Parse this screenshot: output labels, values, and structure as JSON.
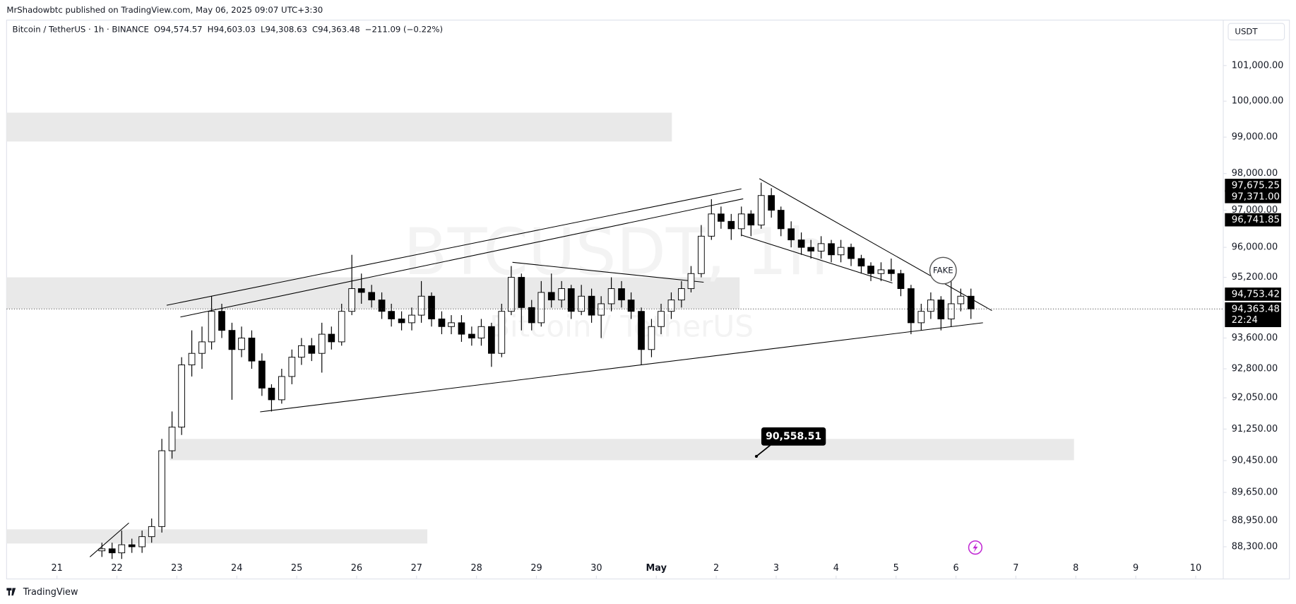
{
  "page": {
    "published": "MrShadowbtc published on TradingView.com, May 06, 2025 09:07 UTC+3:30",
    "brand": "TradingView",
    "currency_button": "USDT"
  },
  "chart_data": {
    "type": "candlestick",
    "symbol": "Bitcoin / TetherUS · 1h · BINANCE",
    "ohlc_header": [
      "O94,574.57",
      "H94,603.03",
      "L94,308.63",
      "C94,363.48",
      "−211.09 (−0.22%)"
    ],
    "watermark": [
      "BTCUSDT, 1h",
      "Bitcoin / TetherUS"
    ],
    "log_scale": true,
    "grid": false,
    "up_color": "#ffffff",
    "down_color": "#000000",
    "wick_color": "#000000",
    "zone_color": "#e9e9e9",
    "line_color": "#000000",
    "xlim": [
      -0.84,
      19.46
    ],
    "xticks": [
      {
        "value": 0,
        "label": "21"
      },
      {
        "value": 1,
        "label": "22"
      },
      {
        "value": 2,
        "label": "23"
      },
      {
        "value": 3,
        "label": "24"
      },
      {
        "value": 4,
        "label": "25"
      },
      {
        "value": 5,
        "label": "26"
      },
      {
        "value": 6,
        "label": "27"
      },
      {
        "value": 7,
        "label": "28"
      },
      {
        "value": 8,
        "label": "29"
      },
      {
        "value": 9,
        "label": "30"
      },
      {
        "value": 10,
        "label": "May"
      },
      {
        "value": 11,
        "label": "2"
      },
      {
        "value": 12,
        "label": "3"
      },
      {
        "value": 13,
        "label": "4"
      },
      {
        "value": 14,
        "label": "5"
      },
      {
        "value": 15,
        "label": "6"
      },
      {
        "value": 16,
        "label": "7"
      },
      {
        "value": 17,
        "label": "8"
      },
      {
        "value": 18,
        "label": "9"
      },
      {
        "value": 19,
        "label": "10"
      }
    ],
    "ylim": [
      87510,
      102290
    ],
    "yticks": [
      {
        "value": 101000,
        "label": "101,000.00"
      },
      {
        "value": 100000,
        "label": "100,000.00"
      },
      {
        "value": 99000,
        "label": "99,000.00"
      },
      {
        "value": 98000,
        "label": "98,000.00"
      },
      {
        "value": 97000,
        "label": "97,000.00"
      },
      {
        "value": 96000,
        "label": "96,000.00"
      },
      {
        "value": 95200,
        "label": "95,200.00"
      },
      {
        "value": 93600,
        "label": "93,600.00"
      },
      {
        "value": 92800,
        "label": "92,800.00"
      },
      {
        "value": 92050,
        "label": "92,050.00"
      },
      {
        "value": 91250,
        "label": "91,250.00"
      },
      {
        "value": 90450,
        "label": "90,450.00"
      },
      {
        "value": 89650,
        "label": "89,650.00"
      },
      {
        "value": 88950,
        "label": "88,950.00"
      },
      {
        "value": 88300,
        "label": "88,300.00"
      }
    ],
    "x": [
      0.75,
      0.92,
      1.08,
      1.25,
      1.42,
      1.58,
      1.75,
      1.92,
      2.08,
      2.25,
      2.42,
      2.58,
      2.75,
      2.92,
      3.08,
      3.25,
      3.42,
      3.58,
      3.75,
      3.92,
      4.08,
      4.25,
      4.42,
      4.58,
      4.75,
      4.92,
      5.08,
      5.25,
      5.42,
      5.58,
      5.75,
      5.92,
      6.08,
      6.25,
      6.42,
      6.58,
      6.75,
      6.92,
      7.08,
      7.25,
      7.42,
      7.58,
      7.75,
      7.92,
      8.08,
      8.25,
      8.42,
      8.58,
      8.75,
      8.92,
      9.08,
      9.25,
      9.42,
      9.58,
      9.75,
      9.92,
      10.08,
      10.25,
      10.42,
      10.58,
      10.75,
      10.92,
      11.08,
      11.25,
      11.42,
      11.58,
      11.75,
      11.92,
      12.08,
      12.25,
      12.42,
      12.58,
      12.75,
      12.92,
      13.08,
      13.25,
      13.42,
      13.58,
      13.75,
      13.92,
      14.08,
      14.25,
      14.42,
      14.58,
      14.75,
      14.92,
      15.08,
      15.25
    ],
    "open": [
      88200,
      88250,
      88150,
      88350,
      88300,
      88550,
      88800,
      90700,
      91300,
      92900,
      93200,
      93500,
      94300,
      93800,
      93300,
      93600,
      93000,
      92300,
      92000,
      92600,
      93100,
      93400,
      93200,
      93700,
      93500,
      94300,
      94900,
      94800,
      94600,
      94300,
      94100,
      94000,
      94200,
      94700,
      94100,
      93900,
      94000,
      93700,
      93600,
      93900,
      93200,
      94300,
      95200,
      94400,
      94000,
      94800,
      94600,
      94900,
      94300,
      94700,
      94200,
      94500,
      94900,
      94600,
      94300,
      93300,
      93900,
      94300,
      94600,
      94900,
      95300,
      96300,
      96900,
      96700,
      96500,
      96900,
      96600,
      97400,
      97000,
      96500,
      96200,
      96000,
      95900,
      96100,
      95800,
      96000,
      95700,
      95500,
      95300,
      95400,
      95300,
      94900,
      94000,
      94300,
      94600,
      94100,
      94500,
      94700
    ],
    "high": [
      88400,
      88400,
      88700,
      88500,
      88700,
      89000,
      91000,
      91700,
      93100,
      93800,
      93900,
      94700,
      94500,
      94000,
      93900,
      93800,
      93200,
      92400,
      92800,
      93300,
      93600,
      93600,
      94000,
      93900,
      94500,
      95800,
      95300,
      95000,
      94800,
      94500,
      94300,
      94400,
      95100,
      94800,
      94300,
      94200,
      94200,
      93900,
      94100,
      94000,
      94500,
      95500,
      95300,
      94600,
      95100,
      95300,
      95100,
      95000,
      95000,
      94900,
      94700,
      95200,
      95100,
      94800,
      94400,
      94100,
      94500,
      94800,
      95100,
      95500,
      96600,
      97300,
      97100,
      96900,
      97100,
      97000,
      97750,
      97600,
      97100,
      96700,
      96400,
      96200,
      96300,
      96200,
      96200,
      96100,
      95800,
      95600,
      95600,
      95700,
      95400,
      95000,
      94500,
      94800,
      94700,
      95100,
      94900,
      94900
    ],
    "low": [
      88050,
      88000,
      88000,
      88150,
      88150,
      88400,
      88650,
      90500,
      91100,
      92600,
      92800,
      93300,
      93600,
      92000,
      93100,
      92800,
      92100,
      91700,
      91900,
      92400,
      92900,
      93000,
      92700,
      93300,
      93400,
      94200,
      94500,
      94400,
      94100,
      93900,
      93800,
      93800,
      94000,
      93900,
      93700,
      93700,
      93500,
      93400,
      93400,
      92850,
      93100,
      94200,
      93800,
      93800,
      93900,
      94400,
      94400,
      94100,
      94200,
      94000,
      93600,
      94300,
      94400,
      94100,
      92900,
      93100,
      93700,
      94100,
      94400,
      94800,
      95200,
      96200,
      96500,
      96200,
      96300,
      96300,
      96500,
      96800,
      96300,
      96000,
      95800,
      95700,
      95700,
      95600,
      95600,
      95500,
      95300,
      95100,
      95100,
      95100,
      94700,
      93700,
      93800,
      94100,
      93800,
      93900,
      94300,
      94100
    ],
    "close": [
      88250,
      88150,
      88350,
      88300,
      88550,
      88800,
      90700,
      91300,
      92900,
      93200,
      93500,
      94300,
      93800,
      93300,
      93600,
      93000,
      92300,
      92000,
      92600,
      93100,
      93400,
      93200,
      93700,
      93500,
      94300,
      94900,
      94800,
      94600,
      94300,
      94100,
      94000,
      94200,
      94700,
      94100,
      93900,
      94000,
      93700,
      93600,
      93900,
      93200,
      94300,
      95200,
      94400,
      94000,
      94800,
      94600,
      94900,
      94300,
      94700,
      94200,
      94500,
      94900,
      94600,
      94300,
      93300,
      93900,
      94300,
      94600,
      94900,
      95300,
      96300,
      96900,
      96700,
      96500,
      96900,
      96600,
      97400,
      97000,
      96500,
      96200,
      96000,
      95900,
      96100,
      95800,
      96000,
      95700,
      95500,
      95300,
      95400,
      95300,
      94900,
      94000,
      94300,
      94600,
      94100,
      94500,
      94700,
      94363.48
    ],
    "zones": [
      {
        "x": [
          -0.84,
          10.26
        ],
        "y": [
          98880,
          99680
        ]
      },
      {
        "x": [
          -0.84,
          11.39
        ],
        "y": [
          94370,
          95200
        ]
      },
      {
        "x": [
          1.88,
          16.97
        ],
        "y": [
          90460,
          91000
        ]
      },
      {
        "x": [
          -0.84,
          6.18
        ],
        "y": [
          88380,
          88730
        ]
      }
    ],
    "lines": [
      {
        "x": [
          1.83,
          11.42
        ],
        "y": [
          94460,
          97580
        ]
      },
      {
        "x": [
          2.06,
          11.45
        ],
        "y": [
          94150,
          97310
        ]
      },
      {
        "x": [
          3.39,
          15.45
        ],
        "y": [
          91690,
          94000
        ]
      },
      {
        "x": [
          7.6,
          10.79
        ],
        "y": [
          95600,
          95070
        ]
      },
      {
        "x": [
          11.72,
          15.6
        ],
        "y": [
          97860,
          94320
        ]
      },
      {
        "x": [
          11.42,
          13.94
        ],
        "y": [
          96330,
          95050
        ]
      },
      {
        "x": [
          0.55,
          1.2
        ],
        "y": [
          88050,
          88890
        ]
      }
    ],
    "fake_label": "FAKE",
    "price_note": {
      "value": 90558.51,
      "label": "90,558.51",
      "x": 11.67
    },
    "price_labels": [
      {
        "value": 97675.25,
        "label": "97,675.25"
      },
      {
        "value": 97371.0,
        "label": "97,371.00"
      },
      {
        "value": 96741.85,
        "label": "96,741.85"
      },
      {
        "value": 94753.42,
        "label": "94,753.42"
      },
      {
        "value": 94363.48,
        "label": "94,363.48"
      }
    ],
    "countdown": "22:24"
  }
}
